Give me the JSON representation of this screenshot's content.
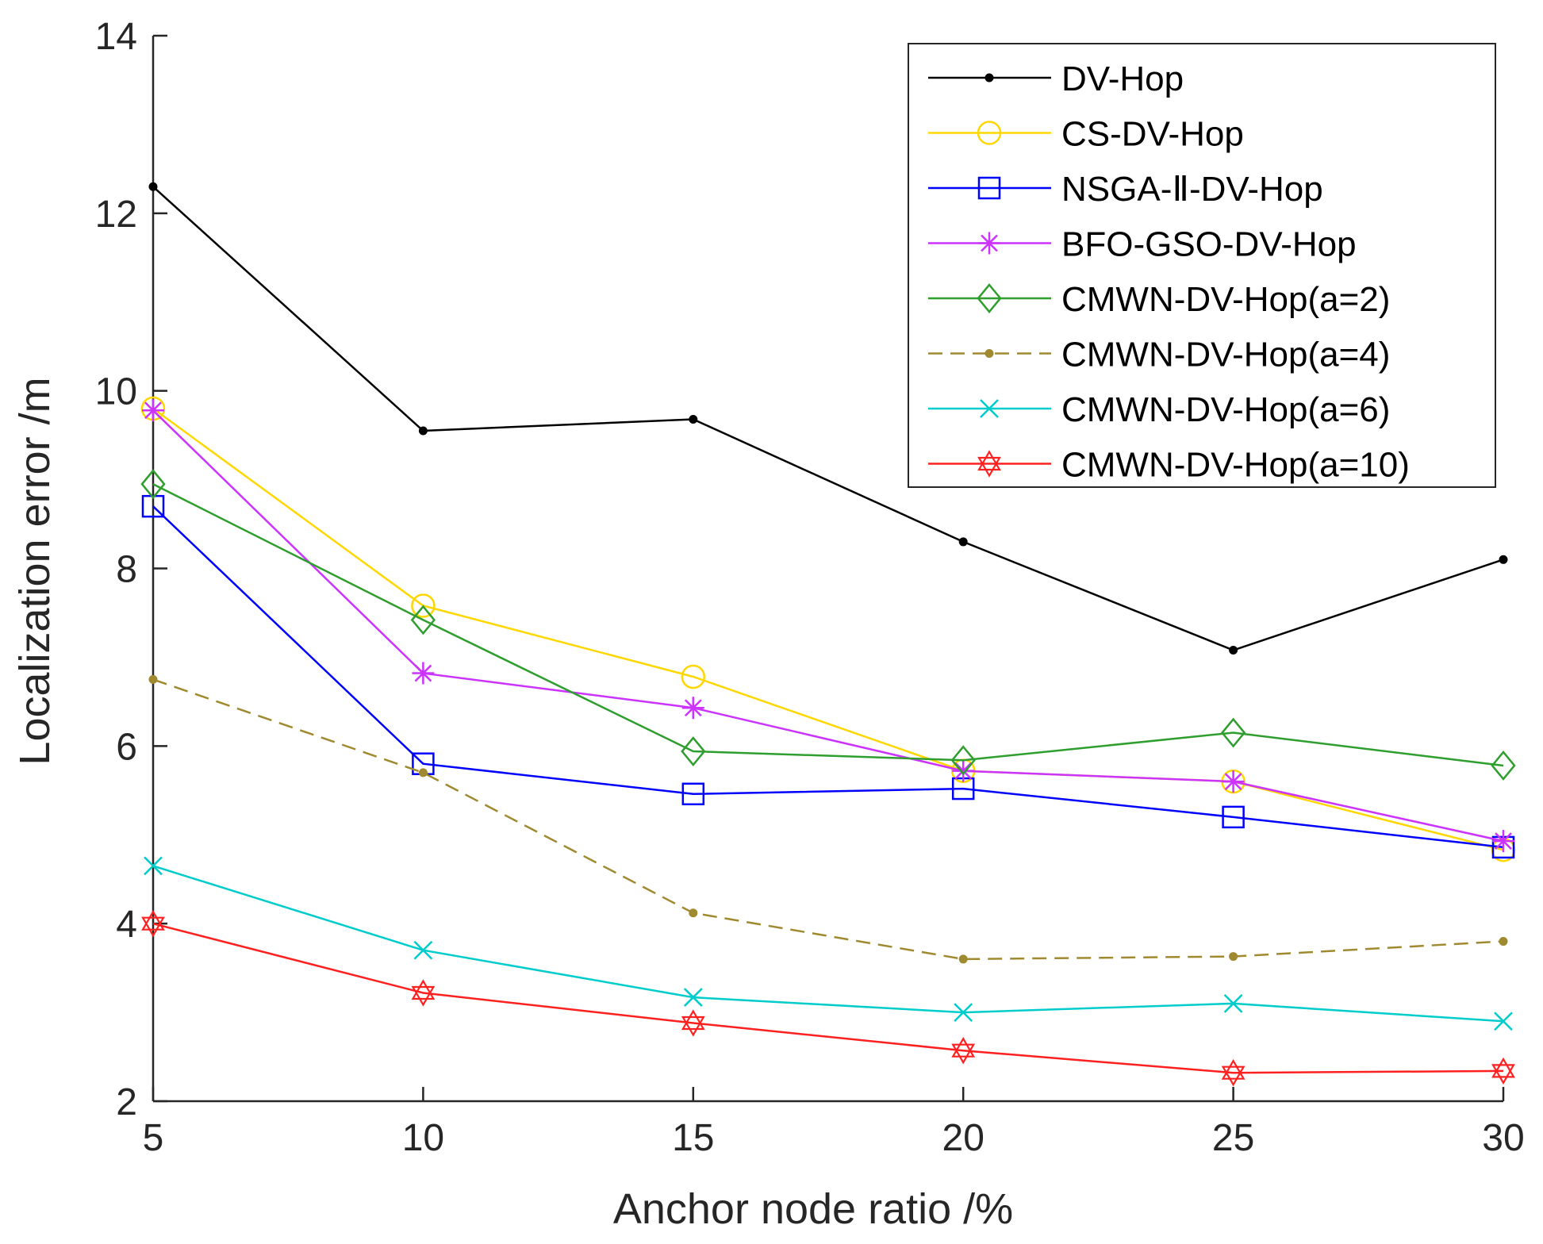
{
  "chart_data": {
    "type": "line",
    "title": "",
    "xlabel": "Anchor node ratio /%",
    "ylabel": "Localization error  /m",
    "x": [
      5,
      10,
      15,
      20,
      25,
      30
    ],
    "xlim": [
      5,
      30
    ],
    "ylim": [
      2,
      14
    ],
    "xticks": [
      "5",
      "10",
      "15",
      "20",
      "25",
      "30"
    ],
    "yticks": [
      "2",
      "4",
      "6",
      "8",
      "10",
      "12",
      "14"
    ],
    "grid": false,
    "legend_position": "top-right",
    "series": [
      {
        "name": "DV-Hop",
        "color": "#000000",
        "marker": "dot",
        "dash": false,
        "values": [
          12.3,
          9.55,
          9.68,
          8.3,
          7.08,
          8.1
        ]
      },
      {
        "name": "CS-DV-Hop",
        "color": "#FFD700",
        "marker": "circle",
        "dash": false,
        "values": [
          9.8,
          7.58,
          6.78,
          5.72,
          5.6,
          4.83
        ]
      },
      {
        "name": "NSGA-Ⅱ-DV-Hop",
        "color": "#0000FF",
        "marker": "square",
        "dash": false,
        "values": [
          8.7,
          5.8,
          5.46,
          5.52,
          5.2,
          4.86
        ]
      },
      {
        "name": "BFO-GSO-DV-Hop",
        "color": "#CC33FF",
        "marker": "star",
        "dash": false,
        "values": [
          9.78,
          6.82,
          6.43,
          5.72,
          5.6,
          4.93
        ]
      },
      {
        "name": "CMWN-DV-Hop(a=2)",
        "color": "#2E9E2E",
        "marker": "diamond",
        "dash": false,
        "values": [
          8.95,
          7.42,
          5.94,
          5.84,
          6.15,
          5.78
        ]
      },
      {
        "name": "CMWN-DV-Hop(a=4)",
        "color": "#A08A30",
        "marker": "dot",
        "dash": true,
        "values": [
          6.75,
          5.7,
          4.12,
          3.6,
          3.63,
          3.8
        ]
      },
      {
        "name": "CMWN-DV-Hop(a=6)",
        "color": "#00CCCC",
        "marker": "x",
        "dash": false,
        "values": [
          4.65,
          3.7,
          3.17,
          3.0,
          3.1,
          2.9
        ]
      },
      {
        "name": "CMWN-DV-Hop(a=10)",
        "color": "#FF2020",
        "marker": "hexagram",
        "dash": false,
        "values": [
          4.0,
          3.22,
          2.88,
          2.57,
          2.32,
          2.34
        ]
      }
    ]
  }
}
